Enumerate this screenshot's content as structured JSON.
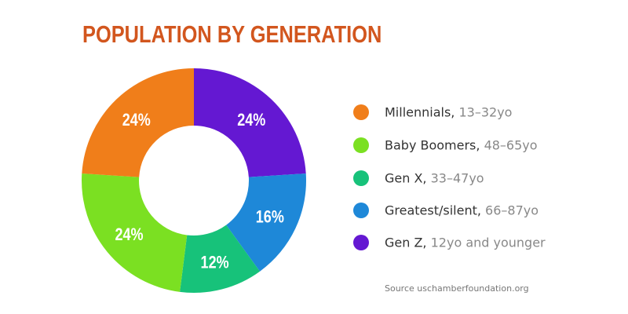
{
  "chart_data": {
    "type": "pie",
    "donut": true,
    "title": "POPULATION BY GENERATION",
    "start": "top, clockwise",
    "slices": [
      {
        "label": "Gen Z",
        "detail": "12yo and younger",
        "value": 24,
        "value_label": "24%",
        "color": "#6418D2"
      },
      {
        "label": "Greatest/silent",
        "detail": "66–87yo",
        "value": 16,
        "value_label": "16%",
        "color": "#1E88D8"
      },
      {
        "label": "Gen X",
        "detail": "33–47yo",
        "value": 12,
        "value_label": "12%",
        "color": "#17C27A"
      },
      {
        "label": "Baby Boomers",
        "detail": "48–65yo",
        "value": 24,
        "value_label": "24%",
        "color": "#7BE022"
      },
      {
        "label": "Millennials",
        "detail": "13–32yo",
        "value": 24,
        "value_label": "24%",
        "color": "#F07E1A"
      }
    ],
    "legend_order": [
      4,
      3,
      2,
      1,
      0
    ],
    "legend_placement": "right",
    "source": "Source uschamberfoundation.org"
  }
}
